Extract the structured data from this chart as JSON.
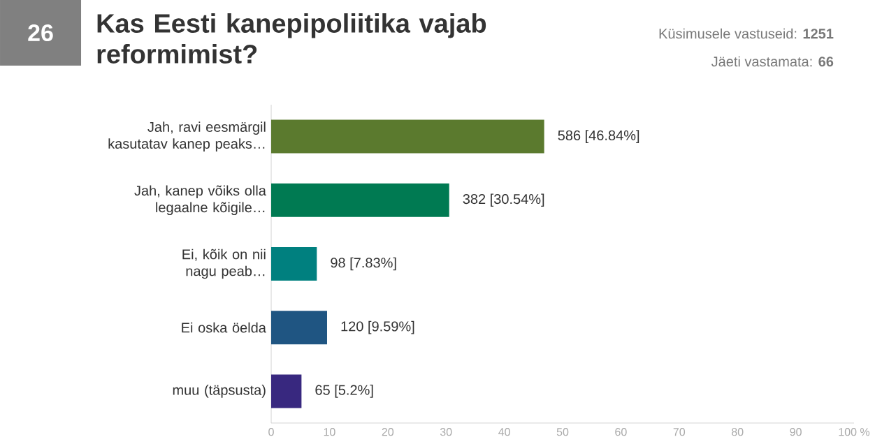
{
  "chart_data": {
    "type": "bar",
    "orientation": "horizontal",
    "title": "Kas Eesti kanepipoliitika vajab reformimist?",
    "annotations": [
      "26",
      "Küsimusele vastuseid: **1251**",
      "Jäeti vastamata: **66**"
    ],
    "categories": [
      "Jah, ravi eesmärgil kasutatav kanep peaks…",
      "Jah, kanep võiks olla legaalne kõigile…",
      "Ei, kõik on nii nagu peab…",
      "Ei oska öelda",
      "muu (täpsusta)"
    ],
    "values": [
      46.84,
      30.54,
      7.83,
      9.59,
      5.2
    ],
    "colors": [
      "#5b7a2e",
      "#007a52",
      "#00807f",
      "#1f5582",
      "#38287f"
    ],
    "value_labels": [
      "586 [46.84%]",
      "382 [30.54%]",
      "98 [7.83%]",
      "120 [9.59%]",
      "65 [5.2%]"
    ],
    "xlim": [
      0,
      100
    ],
    "xticks": [
      0,
      10,
      20,
      30,
      40,
      50,
      60,
      70,
      80,
      90,
      {
        "value": 100,
        "label": "100 %"
      }
    ]
  }
}
